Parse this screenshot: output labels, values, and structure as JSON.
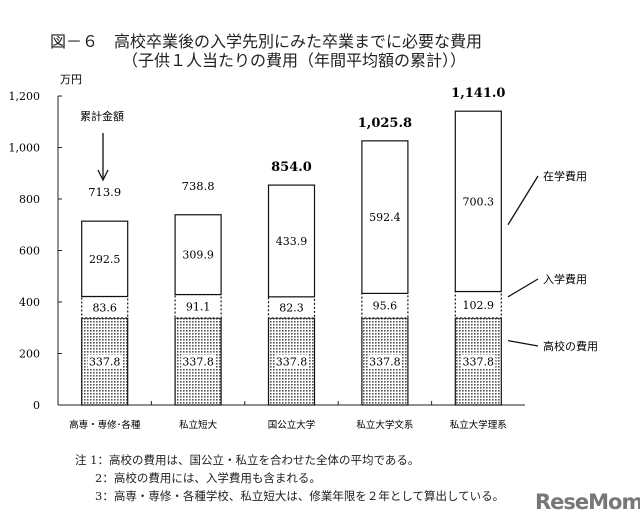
{
  "title": {
    "line1": "図－６　高校卒業後の入学先別にみた卒業までに必要な費用",
    "line2": "（子供１人当たりの費用（年間平均額の累計））"
  },
  "chart_data": {
    "type": "bar",
    "stacked": true,
    "ylabel": "万円",
    "ylim": [
      0,
      1200
    ],
    "yticks": [
      0,
      200,
      400,
      600,
      800,
      1000,
      1200
    ],
    "ytick_labels": [
      "0",
      "200",
      "400",
      "600",
      "800",
      "1,000",
      "1,200"
    ],
    "categories": [
      "高専・専修･各種",
      "私立短大",
      "国公立大学",
      "私立大学文系",
      "私立大学理系"
    ],
    "series": [
      {
        "name": "高校の費用",
        "values": [
          337.8,
          337.8,
          337.8,
          337.8,
          337.8
        ],
        "labels": [
          "337.8",
          "337.8",
          "337.8",
          "337.8",
          "337.8"
        ]
      },
      {
        "name": "入学費用",
        "values": [
          83.6,
          91.1,
          82.3,
          95.6,
          102.9
        ],
        "labels": [
          "83.6",
          "91.1",
          "82.3",
          "95.6",
          "102.9"
        ]
      },
      {
        "name": "在学費用",
        "values": [
          292.5,
          309.9,
          433.9,
          592.4,
          700.3
        ],
        "labels": [
          "292.5",
          "309.9",
          "433.9",
          "592.4",
          "700.3"
        ]
      }
    ],
    "totals": [
      713.9,
      738.8,
      854.0,
      1025.8,
      1141.0
    ],
    "total_labels": [
      "713.9",
      "738.8",
      "854.0",
      "1,025.8",
      "1,141.0"
    ],
    "total_bold": [
      false,
      false,
      true,
      true,
      true
    ],
    "annotations": {
      "cumulative": "累計金額",
      "enrolled": "在学費用",
      "admission": "入学費用",
      "highschool": "高校の費用"
    }
  },
  "notes": [
    "注 1：高校の費用は、国公立・私立を合わせた全体の平均である。",
    "2：高校の費用には、入学費用も含まれる。",
    "3：高専・専修・各種学校、私立短大は、修業年限を２年として算出している。"
  ],
  "watermark": "ReseMom"
}
